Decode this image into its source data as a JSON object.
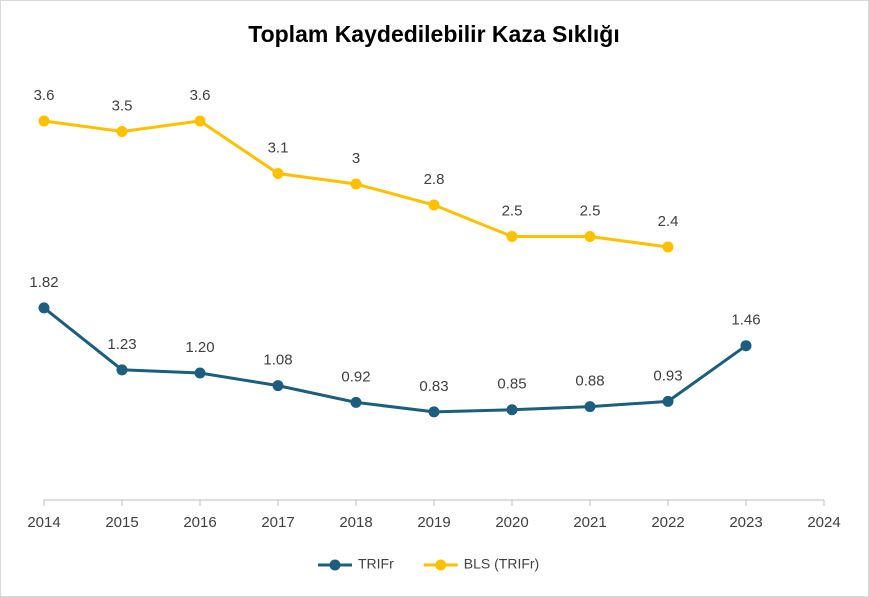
{
  "chart_data": {
    "type": "line",
    "title": "Toplam Kaydedilebilir Kaza Sıklığı",
    "x": [
      2014,
      2015,
      2016,
      2017,
      2018,
      2019,
      2020,
      2021,
      2022,
      2023
    ],
    "xlim": [
      2014,
      2024
    ],
    "xticks": [
      2014,
      2015,
      2016,
      2017,
      2018,
      2019,
      2020,
      2021,
      2022,
      2023,
      2024
    ],
    "ylim": [
      0,
      4
    ],
    "grid": false,
    "legend": "bottom",
    "series": [
      {
        "name": "TRIFr",
        "color": "#1b5e7f",
        "values": [
          1.82,
          1.23,
          1.2,
          1.08,
          0.92,
          0.83,
          0.85,
          0.88,
          0.93,
          1.46
        ],
        "value_labels": [
          "1.82",
          "1.23",
          "1.20",
          "1.08",
          "0.92",
          "0.83",
          "0.85",
          "0.88",
          "0.93",
          "1.46"
        ]
      },
      {
        "name": "BLS (TRIFr)",
        "color": "#ffc000",
        "values": [
          3.6,
          3.5,
          3.6,
          3.1,
          3,
          2.8,
          2.5,
          2.5,
          2.4,
          null
        ]
      }
    ]
  }
}
